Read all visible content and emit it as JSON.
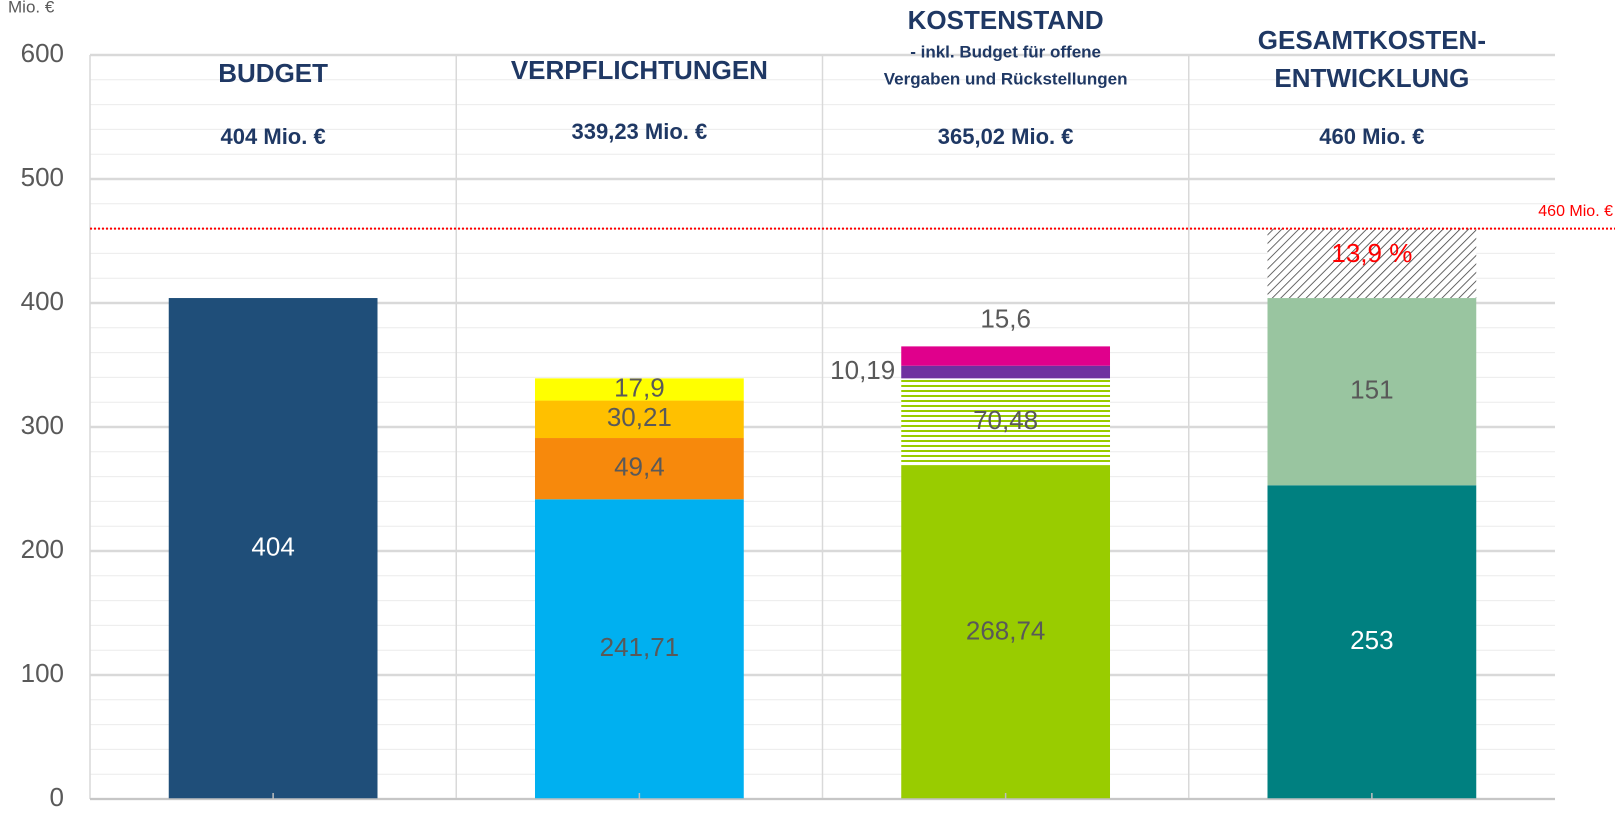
{
  "chart_data": {
    "type": "bar",
    "stacked": true,
    "y_label": "Mio. €",
    "ylim": [
      0,
      600
    ],
    "yticks": [
      0,
      100,
      200,
      300,
      400,
      500,
      600
    ],
    "minor_yticks": [
      20,
      40,
      60,
      80,
      120,
      140,
      160,
      180,
      220,
      240,
      260,
      280,
      320,
      340,
      360,
      380,
      420,
      440,
      460,
      480,
      520,
      540,
      560,
      580
    ],
    "grid": true,
    "columns": [
      {
        "title": [
          "BUDGET"
        ],
        "total": "404 Mio. €"
      },
      {
        "title": [
          "VERPFLICHTUNGEN"
        ],
        "total": "339,23 Mio. €"
      },
      {
        "title": [
          "KOSTENSTAND"
        ],
        "subtitle": [
          "- inkl. Budget für offene",
          "Vergaben und Rückstellungen"
        ],
        "total": "365,02 Mio. €"
      },
      {
        "title": [
          "GESAMTKOSTEN-",
          "ENTWICKLUNG"
        ],
        "total": "460 Mio. €"
      }
    ],
    "stacks": [
      {
        "values": [
          404
        ],
        "value_labels": [
          "404"
        ],
        "colors": [
          "#1f4e79"
        ],
        "label_colors": [
          "#ffffff"
        ],
        "patterns": [
          null
        ]
      },
      {
        "values": [
          241.71,
          49.4,
          30.21,
          17.9
        ],
        "value_labels": [
          "241,71",
          "49,4",
          "30,21",
          "17,9"
        ],
        "colors": [
          "#00b0f0",
          "#f7890c",
          "#ffc000",
          "#ffff00"
        ],
        "label_colors": [
          "#595959",
          "#595959",
          "#595959",
          "#595959"
        ],
        "patterns": [
          null,
          null,
          null,
          null
        ]
      },
      {
        "values": [
          268.74,
          70.48,
          10.19,
          15.6
        ],
        "value_labels": [
          "268,74",
          "70,48",
          "10,19",
          "15,6"
        ],
        "colors": [
          "#99cc00",
          "#99cc00",
          "#7030a0",
          "#e0008c"
        ],
        "label_colors": [
          "#595959",
          "#595959",
          "#595959",
          "#595959"
        ],
        "patterns": [
          null,
          "horizontal",
          null,
          null
        ]
      },
      {
        "values": [
          253,
          151,
          56
        ],
        "value_labels": [
          "253",
          "151",
          null
        ],
        "colors": [
          "#008080",
          "#99c5a0",
          "#404040"
        ],
        "label_colors": [
          "#ffffff",
          "#595959",
          null
        ],
        "patterns": [
          null,
          null,
          "diagonal"
        ]
      }
    ],
    "annotation": {
      "text": "13,9 %",
      "color": "#ff0000"
    },
    "reference_line": {
      "value": 460,
      "label": "460 Mio. €",
      "color": "#ff0000"
    }
  }
}
